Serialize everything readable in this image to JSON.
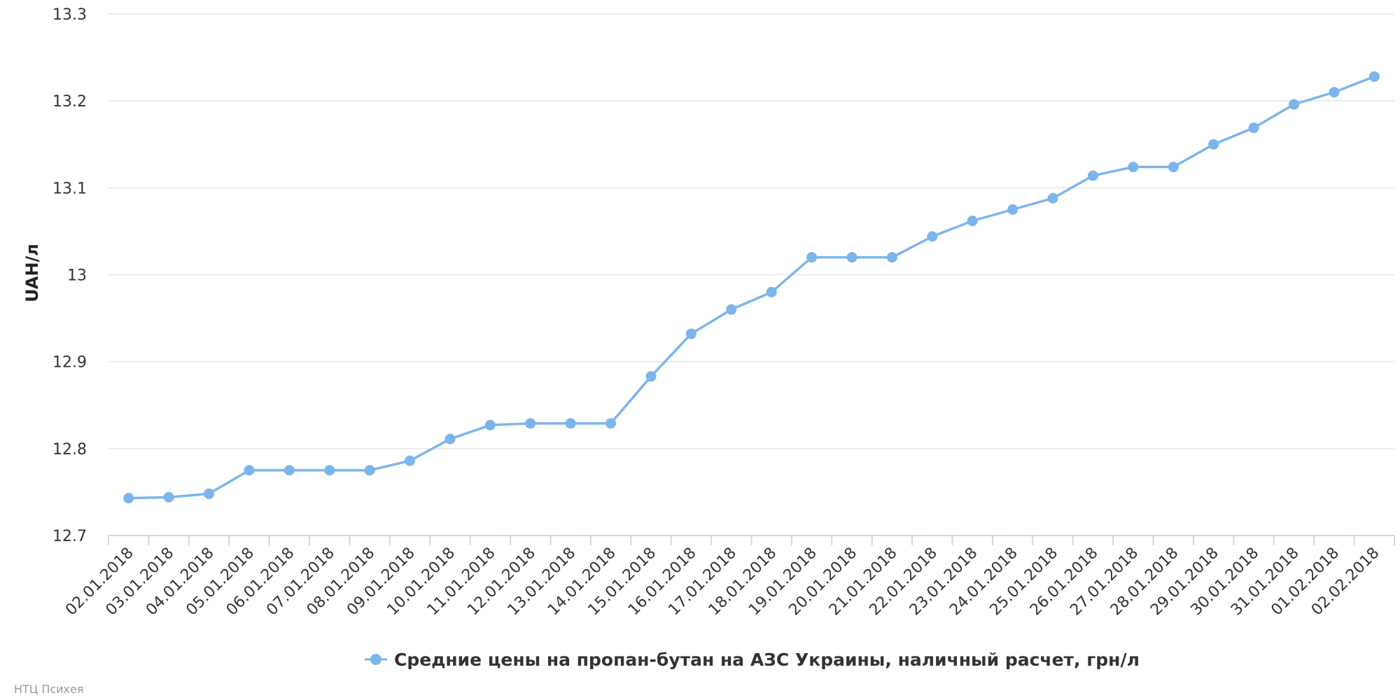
{
  "chart_data": {
    "type": "line",
    "title": "",
    "xlabel": "",
    "ylabel": "UAH/л",
    "ylim": [
      12.7,
      13.3
    ],
    "yticks": [
      "12.7",
      "12.8",
      "12.9",
      "13",
      "13.1",
      "13.2",
      "13.3"
    ],
    "ytick_values": [
      12.7,
      12.8,
      12.9,
      13.0,
      13.1,
      13.2,
      13.3
    ],
    "grid": true,
    "legend_position": "bottom-center",
    "categories": [
      "02.01.2018",
      "03.01.2018",
      "04.01.2018",
      "05.01.2018",
      "06.01.2018",
      "07.01.2018",
      "08.01.2018",
      "09.01.2018",
      "10.01.2018",
      "11.01.2018",
      "12.01.2018",
      "13.01.2018",
      "14.01.2018",
      "15.01.2018",
      "16.01.2018",
      "17.01.2018",
      "18.01.2018",
      "19.01.2018",
      "20.01.2018",
      "21.01.2018",
      "22.01.2018",
      "23.01.2018",
      "24.01.2018",
      "25.01.2018",
      "26.01.2018",
      "27.01.2018",
      "28.01.2018",
      "29.01.2018",
      "30.01.2018",
      "31.01.2018",
      "01.02.2018",
      "02.02.2018"
    ],
    "series": [
      {
        "name": "Средние цены на пропан-бутан на АЗС Украины, наличный расчет, грн/л",
        "color": "#7cb5ec",
        "values": [
          12.743,
          12.744,
          12.748,
          12.775,
          12.775,
          12.775,
          12.775,
          12.786,
          12.811,
          12.827,
          12.829,
          12.829,
          12.829,
          12.883,
          12.932,
          12.96,
          12.98,
          13.02,
          13.02,
          13.02,
          13.044,
          13.062,
          13.075,
          13.088,
          13.114,
          13.124,
          13.124,
          13.15,
          13.169,
          13.196,
          13.21,
          13.228
        ]
      }
    ]
  },
  "credits": "НТЦ Психея",
  "colors": {
    "series": "#7cb5ec",
    "grid": "#e6e6e6",
    "axis": "#ccd6eb"
  }
}
